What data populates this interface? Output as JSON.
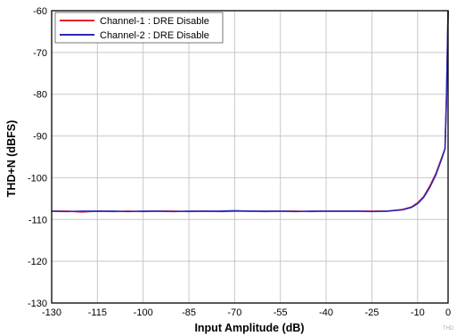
{
  "chart_data": {
    "type": "line",
    "xlabel": "Input Amplitude (dB)",
    "ylabel": "THD+N (dBFS)",
    "xlim": [
      -130,
      0
    ],
    "ylim": [
      -130,
      -60
    ],
    "xticks": [
      -130,
      -115,
      -100,
      -85,
      -70,
      -55,
      -40,
      -25,
      -10,
      0
    ],
    "yticks": [
      -60,
      -70,
      -80,
      -90,
      -100,
      -110,
      -120,
      -130
    ],
    "grid": true,
    "legend_position": "top-left",
    "series": [
      {
        "name": "Channel-1 : DRE Disable",
        "color": "#e8202a",
        "x": [
          -130,
          -125,
          -120,
          -115,
          -110,
          -105,
          -100,
          -95,
          -90,
          -85,
          -80,
          -75,
          -70,
          -65,
          -60,
          -55,
          -50,
          -45,
          -40,
          -35,
          -30,
          -25,
          -20,
          -15,
          -12,
          -10,
          -8,
          -6,
          -4,
          -2,
          -1,
          -0.5,
          0
        ],
        "y": [
          -108,
          -108,
          -108.2,
          -108,
          -108.1,
          -108,
          -108.1,
          -108,
          -108,
          -108.1,
          -108,
          -108.1,
          -108,
          -108,
          -108.1,
          -108,
          -108,
          -108.1,
          -108,
          -108,
          -108,
          -108,
          -108,
          -107.6,
          -107,
          -106,
          -104.5,
          -102,
          -99,
          -95,
          -93,
          -80,
          -60
        ]
      },
      {
        "name": "Channel-2 : DRE Disable",
        "color": "#2a2ab8",
        "x": [
          -130,
          -125,
          -120,
          -115,
          -110,
          -105,
          -100,
          -95,
          -90,
          -85,
          -80,
          -75,
          -70,
          -65,
          -60,
          -55,
          -50,
          -45,
          -40,
          -35,
          -30,
          -25,
          -20,
          -15,
          -12,
          -10,
          -8,
          -6,
          -4,
          -2,
          -1,
          -0.5,
          0
        ],
        "y": [
          -108,
          -108.1,
          -108,
          -108,
          -108,
          -108.1,
          -108,
          -108,
          -108.1,
          -108,
          -108,
          -108,
          -107.9,
          -108,
          -108,
          -108,
          -108.1,
          -108,
          -108,
          -108,
          -108,
          -108.1,
          -108,
          -107.7,
          -107.1,
          -106.2,
          -104.7,
          -102.3,
          -99.3,
          -95.3,
          -93,
          -80,
          -60
        ]
      }
    ]
  },
  "watermark_text": "THD"
}
